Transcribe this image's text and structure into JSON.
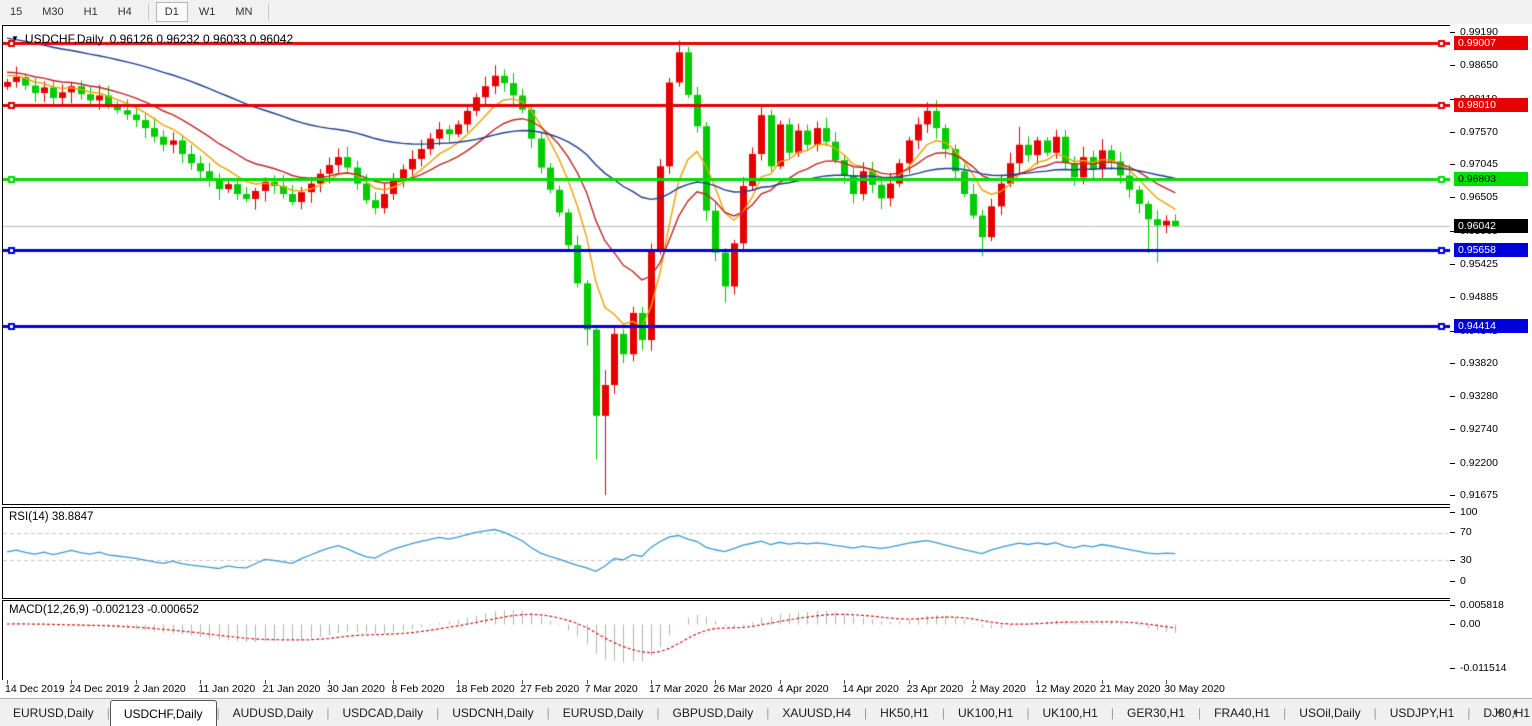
{
  "toolbar": {
    "timeframes": [
      {
        "label": "15",
        "active": false
      },
      {
        "label": "M30",
        "active": false
      },
      {
        "label": "H1",
        "active": false
      },
      {
        "label": "H4",
        "active": false
      },
      {
        "label": "D1",
        "active": true
      },
      {
        "label": "W1",
        "active": false
      },
      {
        "label": "MN",
        "active": false
      }
    ]
  },
  "chart": {
    "title": {
      "symbol": "USDCHF,Daily",
      "ohlc": "0.96126 0.96232 0.96033 0.96042"
    }
  },
  "indicators": {
    "rsi_label": "RSI(14) 38.8847",
    "macd_label": "MACD(12,26,9) -0.002123 -0.000652"
  },
  "price_axis": {
    "labels": [
      "0.99190",
      "0.98650",
      "0.98110",
      "0.97570",
      "0.97045",
      "0.96505",
      "0.95965",
      "0.95425",
      "0.94885",
      "0.94345",
      "0.93820",
      "0.93280",
      "0.92740",
      "0.92200",
      "0.91675"
    ]
  },
  "rsi_axis": {
    "labels": [
      "100",
      "70",
      "30",
      "0"
    ]
  },
  "macd_axis": {
    "labels": [
      "0.005818",
      "0.00",
      "-0.011514"
    ]
  },
  "date_axis": {
    "labels": [
      "14 Dec 2019",
      "24 Dec 2019",
      "2 Jan 2020",
      "11 Jan 2020",
      "21 Jan 2020",
      "30 Jan 2020",
      "8 Feb 2020",
      "18 Feb 2020",
      "27 Feb 2020",
      "7 Mar 2020",
      "17 Mar 2020",
      "26 Mar 2020",
      "4 Apr 2020",
      "14 Apr 2020",
      "23 Apr 2020",
      "2 May 2020",
      "12 May 2020",
      "21 May 2020",
      "30 May 2020"
    ]
  },
  "tabs": {
    "items": [
      {
        "label": "EURUSD,Daily",
        "active": false
      },
      {
        "label": "USDCHF,Daily",
        "active": true
      },
      {
        "label": "AUDUSD,Daily",
        "active": false
      },
      {
        "label": "USDCAD,Daily",
        "active": false
      },
      {
        "label": "USDCNH,Daily",
        "active": false
      },
      {
        "label": "EURUSD,Daily",
        "active": false
      },
      {
        "label": "GBPUSD,Daily",
        "active": false
      },
      {
        "label": "XAUUSD,H4",
        "active": false
      },
      {
        "label": "HK50,H1",
        "active": false
      },
      {
        "label": "UK100,H1",
        "active": false
      },
      {
        "label": "UK100,H1",
        "active": false
      },
      {
        "label": "GER30,H1",
        "active": false
      },
      {
        "label": "FRA40,H1",
        "active": false
      },
      {
        "label": "USOil,Daily",
        "active": false
      },
      {
        "label": "USDJPY,H1",
        "active": false
      },
      {
        "label": "DJ30,H1",
        "active": false
      }
    ],
    "scroll_left": "◄",
    "scroll_right": "►"
  },
  "chart_data": {
    "type": "candlestick",
    "symbol": "USDCHF",
    "timeframe": "Daily",
    "price_range": {
      "top": 0.9919,
      "bottom": 0.91675
    },
    "colors": {
      "bull": "#e60000",
      "bear": "#00cc00",
      "bid_line": "#bcbcbc",
      "background": "#ffffff"
    },
    "first_open": 0.983,
    "closes": [
      0.9838,
      0.9846,
      0.9832,
      0.982,
      0.9829,
      0.9812,
      0.9821,
      0.9831,
      0.9818,
      0.9808,
      0.9816,
      0.98,
      0.9792,
      0.9785,
      0.9776,
      0.9763,
      0.9749,
      0.9736,
      0.9743,
      0.9721,
      0.9706,
      0.9693,
      0.9679,
      0.9664,
      0.9672,
      0.9656,
      0.9648,
      0.9661,
      0.9676,
      0.9669,
      0.9656,
      0.9643,
      0.9659,
      0.9673,
      0.9689,
      0.9703,
      0.9716,
      0.9699,
      0.9673,
      0.9646,
      0.9633,
      0.9656,
      0.9679,
      0.9696,
      0.9713,
      0.9729,
      0.9746,
      0.9761,
      0.9753,
      0.9769,
      0.9791,
      0.9813,
      0.9831,
      0.9848,
      0.9836,
      0.9816,
      0.9793,
      0.9746,
      0.9699,
      0.9663,
      0.9626,
      0.9573,
      0.9511,
      0.9436,
      0.9296,
      0.9346,
      0.9429,
      0.9396,
      0.9463,
      0.9419,
      0.9566,
      0.9701,
      0.9837,
      0.9886,
      0.9817,
      0.9766,
      0.9629,
      0.9561,
      0.9506,
      0.9576,
      0.9669,
      0.9721,
      0.9784,
      0.9701,
      0.9769,
      0.9723,
      0.9759,
      0.9736,
      0.9763,
      0.9741,
      0.9711,
      0.9686,
      0.9656,
      0.9693,
      0.9671,
      0.9649,
      0.9673,
      0.9706,
      0.9743,
      0.9769,
      0.9791,
      0.9763,
      0.9729,
      0.9693,
      0.9656,
      0.9621,
      0.9586,
      0.9636,
      0.9673,
      0.9706,
      0.9736,
      0.9719,
      0.9743,
      0.9723,
      0.9749,
      0.9706,
      0.9683,
      0.9716,
      0.9696,
      0.9727,
      0.9709,
      0.9686,
      0.9663,
      0.964,
      0.9615,
      0.9605,
      0.96126,
      0.96042
    ],
    "wick_overrides": {
      "36": {
        "h": 0.973
      },
      "53": {
        "h": 0.9865
      },
      "63": {
        "l": 0.941
      },
      "64": {
        "l": 0.9225
      },
      "65": {
        "l": 0.91675,
        "h": 0.937
      },
      "73": {
        "h": 0.9905
      },
      "74": {
        "h": 0.9895
      },
      "78": {
        "l": 0.948
      },
      "82": {
        "h": 0.98
      },
      "100": {
        "h": 0.9805
      },
      "106": {
        "l": 0.9555
      },
      "110": {
        "h": 0.9765
      },
      "124": {
        "l": 0.956
      },
      "125": {
        "l": 0.9545
      },
      "127": {
        "h": 0.96232,
        "l": 0.96033
      }
    },
    "hlines": [
      {
        "price": 0.99007,
        "color": "#e60000",
        "label": "0.99007",
        "label_bg": "#e60000",
        "label_fg": "#ffffff"
      },
      {
        "price": 0.9801,
        "color": "#e60000",
        "label": "0.98010",
        "label_bg": "#e60000",
        "label_fg": "#ffffff"
      },
      {
        "price": 0.96803,
        "color": "#00dd00",
        "label": "0.96803",
        "label_bg": "#00dd00",
        "label_fg": "#000000"
      },
      {
        "price": 0.95658,
        "color": "#0000dd",
        "label": "0.95658",
        "label_bg": "#0000dd",
        "label_fg": "#ffffff"
      },
      {
        "price": 0.94414,
        "color": "#0000dd",
        "label": "0.94414",
        "label_bg": "#0000dd",
        "label_fg": "#ffffff"
      }
    ],
    "bid": {
      "price": 0.96042,
      "label": "0.96042",
      "label_bg": "#000000",
      "label_fg": "#ffffff"
    },
    "moving_averages": [
      {
        "name": "ma-fast",
        "period": 7,
        "seed": 0.9852,
        "color": "#f0a000"
      },
      {
        "name": "ma-mid",
        "period": 15,
        "seed": 0.9856,
        "color": "#c22828"
      },
      {
        "name": "ma-slow",
        "period": 50,
        "seed": 0.9912,
        "color": "#1f3f8f"
      }
    ],
    "rsi": {
      "period": 14,
      "color": "#3d9bd5",
      "levels": [
        70,
        30
      ],
      "range": [
        0,
        100
      ],
      "last_value": 38.8847
    },
    "macd": {
      "fast": 12,
      "slow": 26,
      "signal": 9,
      "hist_color": "#b4b4b4",
      "signal_color": "#cc2020",
      "range": [
        -0.011514,
        0.005818
      ],
      "last_main": -0.002123,
      "last_signal": -0.000652
    }
  }
}
